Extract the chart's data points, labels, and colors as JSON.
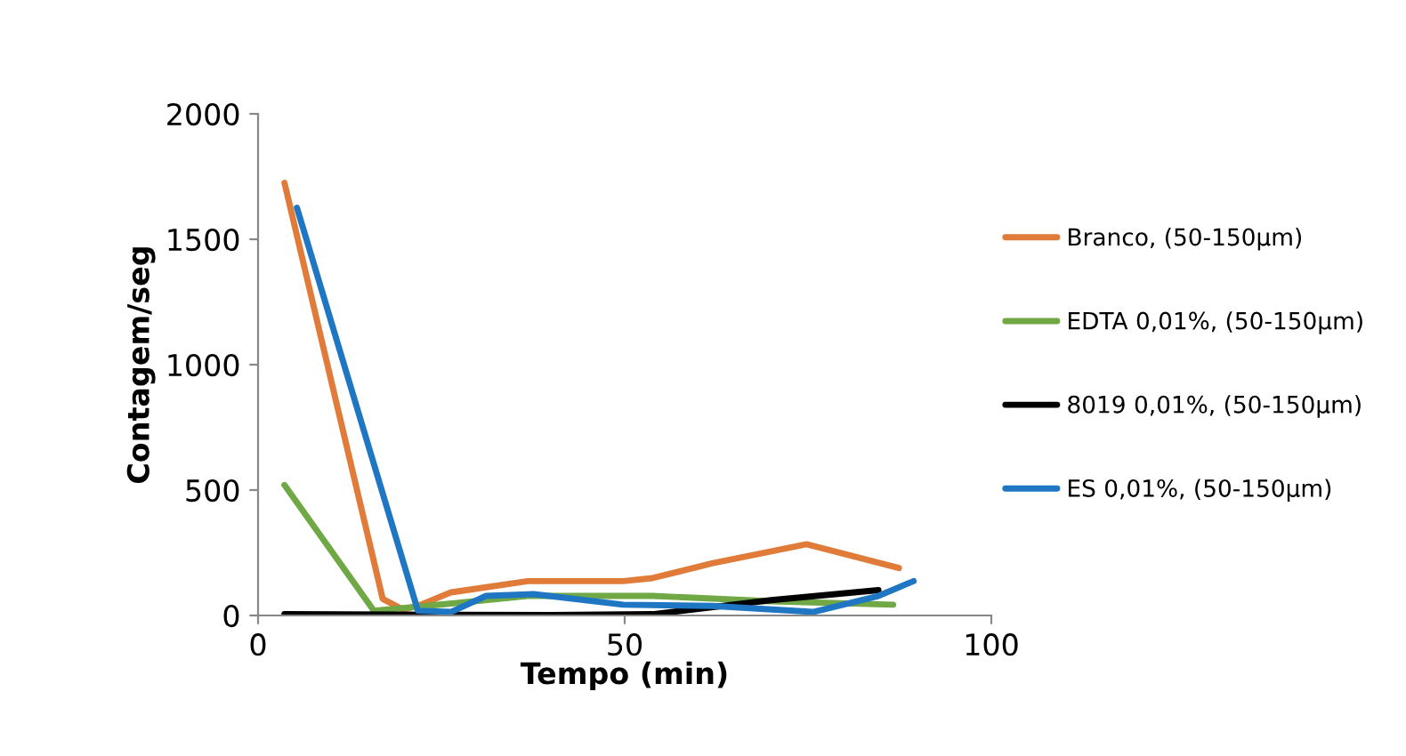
{
  "chart_data": {
    "type": "line",
    "xlabel": "Tempo (min)",
    "ylabel": "Contagem/seg",
    "xlim": [
      0,
      100
    ],
    "xticks": [
      0,
      50,
      100
    ],
    "ylim": [
      0,
      2000
    ],
    "yticks": [
      0,
      500,
      1000,
      1500,
      2000
    ],
    "grid": false,
    "legend": "right",
    "marker": "none",
    "line_style": "solid",
    "series": [
      {
        "name": "Branco, (50-150µm)",
        "color": "#e07b39",
        "x": [
          3.6,
          17,
          19.8,
          22.2,
          26.3,
          36.8,
          49.8,
          53.8,
          61.9,
          74.8,
          87.4
        ],
        "values": [
          1725,
          66,
          23,
          43,
          92,
          137,
          137,
          149,
          208,
          284,
          189
        ]
      },
      {
        "name": "EDTA 0,01%, (50-150µm)",
        "color": "#70a845",
        "x": [
          3.6,
          15.8,
          23,
          36.8,
          53.8,
          69.9,
          86.6
        ],
        "values": [
          520,
          19,
          38,
          78,
          78,
          57,
          43
        ]
      },
      {
        "name": "8019 0,01%, (50-150µm)",
        "color": "#000000",
        "x": [
          3.6,
          40,
          53.8,
          70,
          84.6
        ],
        "values": [
          5,
          2,
          5,
          61,
          101
        ]
      },
      {
        "name": "ES 0,01%, (50-150µm)",
        "color": "#1f77c4",
        "x": [
          5.3,
          21.8,
          26.3,
          31.1,
          37.6,
          49.8,
          61.9,
          75.7,
          84.6,
          89.4
        ],
        "values": [
          1626,
          19,
          14,
          78,
          85,
          43,
          38,
          14,
          78,
          137
        ]
      }
    ]
  }
}
